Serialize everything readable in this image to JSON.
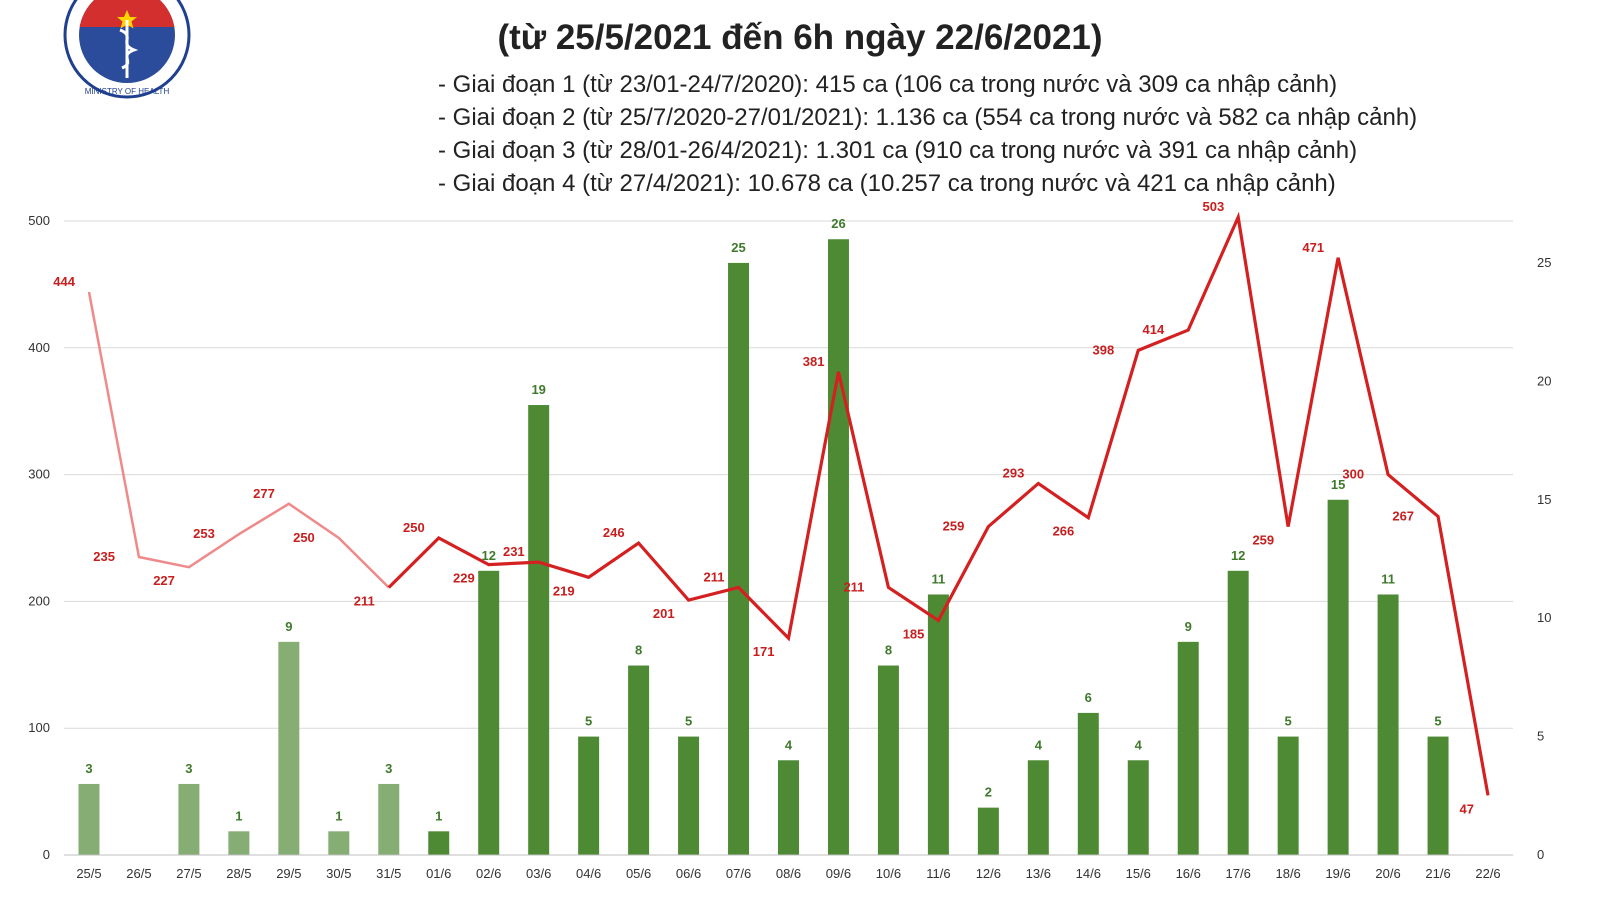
{
  "title": "(từ 25/5/2021 đến 6h ngày 22/6/2021)",
  "phases": [
    "- Giai đoạn 1 (từ 23/01-24/7/2020): 415 ca (106 ca trong nước và 309 ca nhập cảnh)",
    "- Giai đoạn 2 (từ 25/7/2020-27/01/2021): 1.136 ca (554 ca trong nước và 582 ca nhập cảnh)",
    "- Giai đoạn 3 (từ 28/01-26/4/2021): 1.301 ca (910 ca trong nước và 391 ca nhập cảnh)",
    "- Giai đoạn 4 (từ 27/4/2021): 10.678 ca (10.257 ca trong nước và 421 ca nhập cảnh)"
  ],
  "logo": {
    "text": "MINISTRY OF HEALTH"
  },
  "colors": {
    "bar": "#4e8a34",
    "bar_faded": "#86ad74",
    "line": "#d42020",
    "line_faded": "#ef8a8a",
    "grid": "#d9d9d9"
  },
  "chart_data": {
    "type": "bar",
    "categories": [
      "25/5",
      "26/5",
      "27/5",
      "28/5",
      "29/5",
      "30/5",
      "31/5",
      "01/6",
      "02/6",
      "03/6",
      "04/6",
      "05/6",
      "06/6",
      "07/6",
      "08/6",
      "09/6",
      "10/6",
      "11/6",
      "12/6",
      "13/6",
      "14/6",
      "15/6",
      "16/6",
      "17/6",
      "18/6",
      "19/6",
      "20/6",
      "21/6",
      "22/6"
    ],
    "series": [
      {
        "type": "bar",
        "axis": "right",
        "values": [
          3,
          null,
          3,
          1,
          9,
          1,
          3,
          1,
          12,
          19,
          5,
          8,
          5,
          25,
          4,
          26,
          8,
          11,
          2,
          4,
          6,
          4,
          9,
          12,
          5,
          15,
          11,
          5,
          null
        ]
      },
      {
        "type": "line",
        "axis": "left",
        "values": [
          444,
          235,
          227,
          253,
          277,
          250,
          211,
          250,
          229,
          231,
          219,
          246,
          201,
          211,
          171,
          381,
          211,
          185,
          259,
          293,
          266,
          398,
          414,
          503,
          259,
          471,
          300,
          267,
          47
        ]
      }
    ],
    "faded_until_index": 7,
    "ylim_left": [
      0,
      500
    ],
    "yticks_left": [
      0,
      100,
      200,
      300,
      400,
      500
    ],
    "ylim_right": [
      0,
      26.77
    ],
    "yticks_right": [
      0,
      5,
      10,
      15,
      20,
      25
    ],
    "grid": true
  }
}
